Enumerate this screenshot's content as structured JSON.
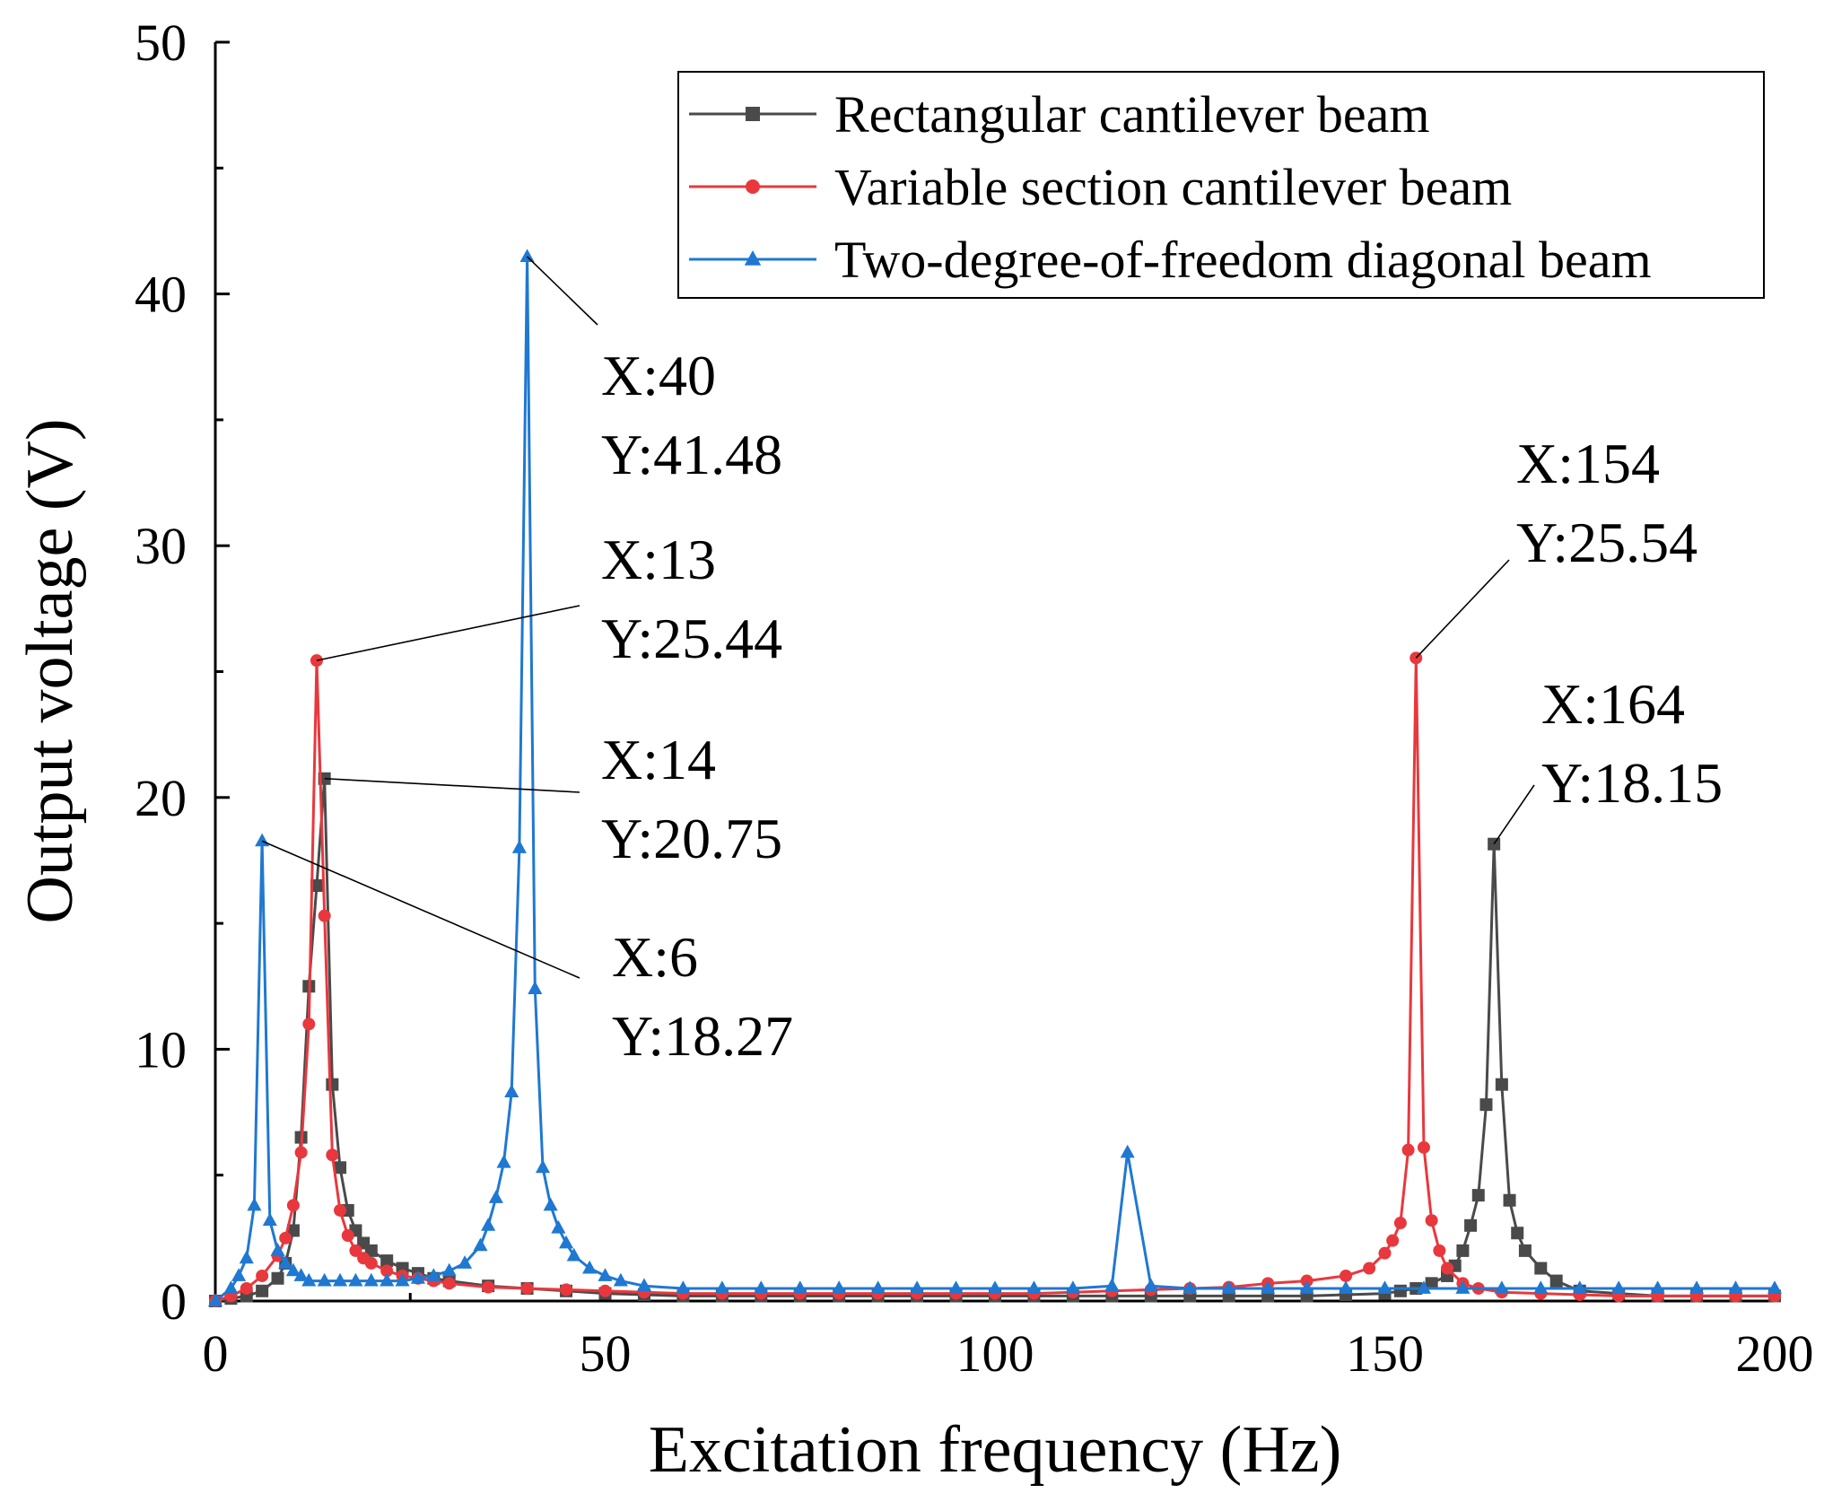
{
  "chart_data": {
    "type": "line",
    "xlabel": "Excitation frequency (Hz)",
    "ylabel": "Output voltage (V)",
    "xlim": [
      0,
      200
    ],
    "ylim": [
      0,
      50
    ],
    "xticks": [
      0,
      50,
      100,
      150,
      200
    ],
    "yticks": [
      0,
      10,
      20,
      30,
      40,
      50
    ],
    "grid": false,
    "legend_position": "top-right",
    "series": [
      {
        "name": "Rectangular cantilever beam",
        "color": "#4a4a4a",
        "marker": "square",
        "x": [
          0,
          2,
          4,
          6,
          8,
          9,
          10,
          11,
          12,
          13,
          14,
          15,
          16,
          17,
          18,
          19,
          20,
          22,
          24,
          26,
          28,
          30,
          35,
          40,
          45,
          50,
          55,
          60,
          65,
          70,
          75,
          80,
          85,
          90,
          95,
          100,
          105,
          110,
          115,
          120,
          125,
          130,
          135,
          140,
          145,
          150,
          152,
          154,
          156,
          158,
          159,
          160,
          161,
          162,
          163,
          164,
          165,
          166,
          167,
          168,
          170,
          172,
          175,
          180,
          185,
          190,
          195,
          200
        ],
        "y": [
          0,
          0.1,
          0.2,
          0.4,
          0.9,
          1.5,
          2.8,
          6.5,
          12.5,
          16.5,
          20.75,
          8.6,
          5.3,
          3.6,
          2.8,
          2.3,
          2.0,
          1.6,
          1.3,
          1.1,
          0.9,
          0.8,
          0.6,
          0.5,
          0.4,
          0.3,
          0.25,
          0.2,
          0.2,
          0.2,
          0.2,
          0.2,
          0.2,
          0.2,
          0.2,
          0.2,
          0.2,
          0.2,
          0.2,
          0.2,
          0.2,
          0.2,
          0.2,
          0.2,
          0.25,
          0.3,
          0.4,
          0.5,
          0.7,
          1.0,
          1.4,
          2.0,
          3.0,
          4.2,
          7.8,
          18.15,
          8.6,
          4.0,
          2.7,
          2.0,
          1.3,
          0.8,
          0.4,
          0.3,
          0.2,
          0.2,
          0.2,
          0.2
        ]
      },
      {
        "name": "Variable section cantilever beam",
        "color": "#e8383d",
        "marker": "circle",
        "x": [
          0,
          2,
          4,
          6,
          8,
          9,
          10,
          11,
          12,
          13,
          14,
          15,
          16,
          17,
          18,
          19,
          20,
          22,
          24,
          26,
          28,
          30,
          35,
          40,
          45,
          50,
          55,
          60,
          65,
          70,
          75,
          80,
          85,
          90,
          95,
          100,
          105,
          110,
          115,
          120,
          125,
          130,
          135,
          140,
          145,
          148,
          150,
          151,
          152,
          153,
          154,
          155,
          156,
          157,
          158,
          160,
          162,
          165,
          170,
          175,
          180,
          185,
          190,
          195,
          200
        ],
        "y": [
          0,
          0.2,
          0.5,
          1.0,
          1.8,
          2.5,
          3.8,
          5.9,
          11.0,
          25.44,
          15.3,
          5.8,
          3.6,
          2.6,
          2.0,
          1.7,
          1.5,
          1.2,
          1.0,
          0.9,
          0.8,
          0.7,
          0.55,
          0.5,
          0.45,
          0.4,
          0.35,
          0.3,
          0.3,
          0.3,
          0.3,
          0.3,
          0.3,
          0.3,
          0.3,
          0.3,
          0.3,
          0.35,
          0.4,
          0.45,
          0.5,
          0.55,
          0.7,
          0.8,
          1.0,
          1.3,
          1.9,
          2.4,
          3.1,
          6.0,
          25.54,
          6.1,
          3.2,
          2.0,
          1.3,
          0.7,
          0.5,
          0.35,
          0.3,
          0.25,
          0.2,
          0.2,
          0.2,
          0.2,
          0.2
        ]
      },
      {
        "name": "Two-degree-of-freedom diagonal beam",
        "color": "#1f78d1",
        "marker": "triangle",
        "x": [
          0,
          2,
          3,
          4,
          5,
          6,
          7,
          8,
          9,
          10,
          11,
          12,
          14,
          16,
          18,
          20,
          22,
          24,
          26,
          28,
          30,
          32,
          34,
          35,
          36,
          37,
          38,
          39,
          40,
          41,
          42,
          43,
          44,
          45,
          46,
          48,
          50,
          52,
          55,
          60,
          65,
          70,
          75,
          80,
          85,
          90,
          95,
          100,
          105,
          110,
          115,
          117,
          120,
          125,
          130,
          135,
          140,
          145,
          150,
          155,
          160,
          165,
          170,
          175,
          180,
          185,
          190,
          195,
          200
        ],
        "y": [
          0,
          0.5,
          1.0,
          1.7,
          3.8,
          18.27,
          3.2,
          2.0,
          1.5,
          1.2,
          1.0,
          0.8,
          0.8,
          0.8,
          0.8,
          0.8,
          0.8,
          0.8,
          0.9,
          1.0,
          1.2,
          1.5,
          2.2,
          3.0,
          4.1,
          5.5,
          8.3,
          18.0,
          41.48,
          12.4,
          5.3,
          3.8,
          2.9,
          2.3,
          1.8,
          1.3,
          1.0,
          0.8,
          0.6,
          0.5,
          0.5,
          0.5,
          0.5,
          0.5,
          0.5,
          0.5,
          0.5,
          0.5,
          0.5,
          0.5,
          0.6,
          5.9,
          0.6,
          0.5,
          0.5,
          0.5,
          0.5,
          0.5,
          0.5,
          0.5,
          0.5,
          0.5,
          0.5,
          0.5,
          0.5,
          0.5,
          0.5,
          0.5,
          0.5
        ]
      }
    ],
    "annotations": [
      {
        "id": "peak-40",
        "point": [
          40,
          41.48
        ],
        "text_x": "X:40",
        "text_y": "Y:41.48"
      },
      {
        "id": "peak-13",
        "point": [
          13,
          25.44
        ],
        "text_x": "X:13",
        "text_y": "Y:25.44"
      },
      {
        "id": "peak-14",
        "point": [
          14,
          20.75
        ],
        "text_x": "X:14",
        "text_y": "Y:20.75"
      },
      {
        "id": "peak-6",
        "point": [
          6,
          18.27
        ],
        "text_x": "X:6",
        "text_y": "Y:18.27"
      },
      {
        "id": "peak-154",
        "point": [
          154,
          25.54
        ],
        "text_x": "X:154",
        "text_y": "Y:25.54"
      },
      {
        "id": "peak-164",
        "point": [
          164,
          18.15
        ],
        "text_x": "X:164",
        "text_y": "Y:18.15"
      }
    ]
  }
}
